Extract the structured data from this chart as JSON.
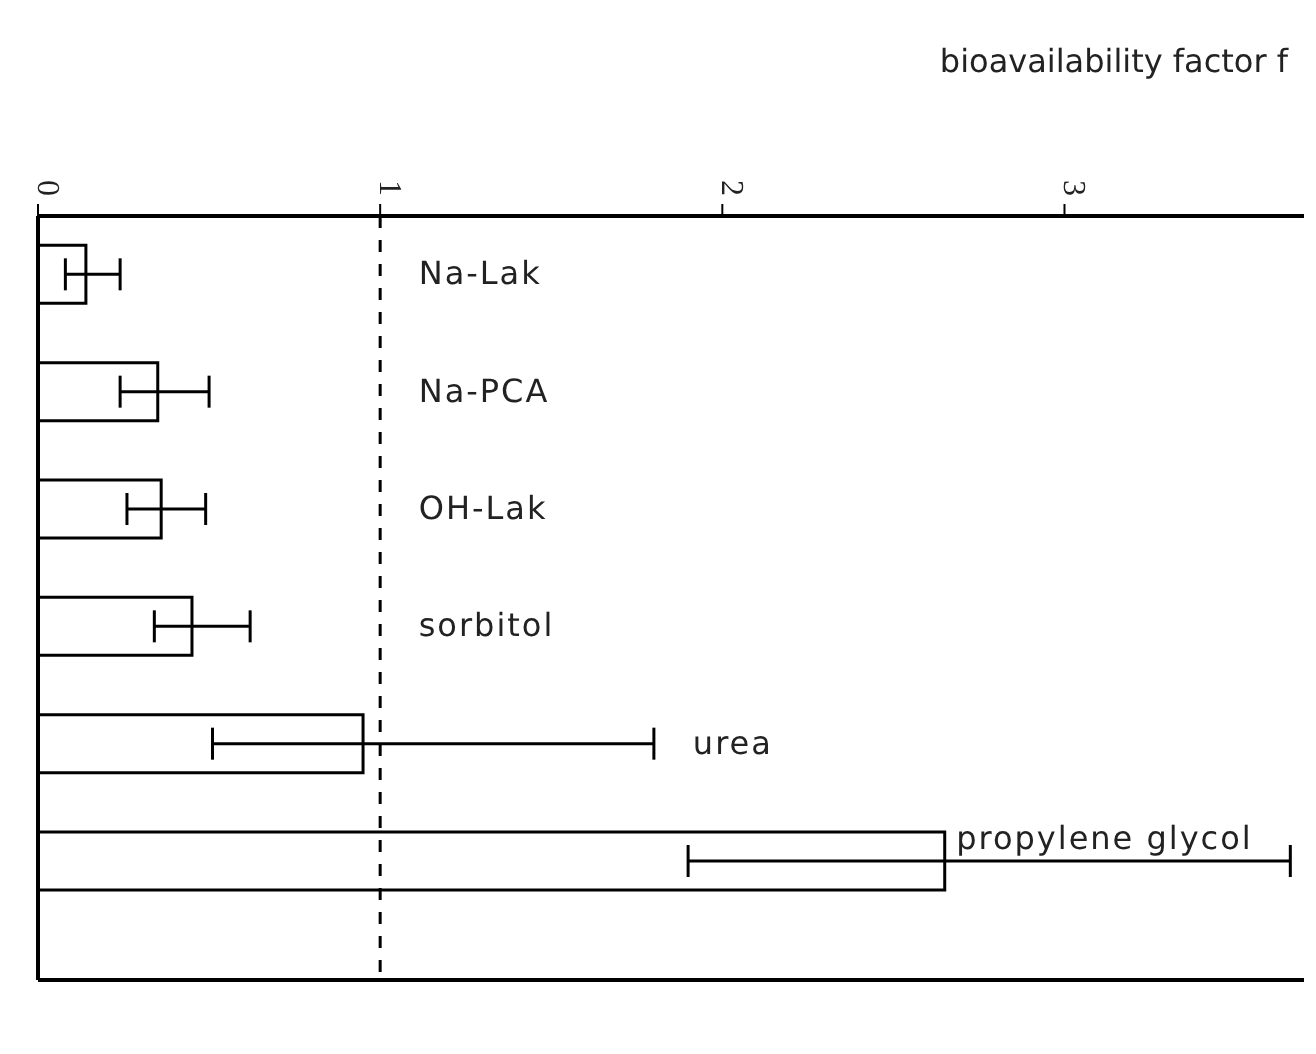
{
  "chart_data": {
    "type": "bar",
    "orientation": "horizontal",
    "xlabel": "bioavailability factor f",
    "categories": [
      "Na-Lak",
      "Na-PCA",
      "OH-Lak",
      "sorbitol",
      "urea",
      "propylene glycol"
    ],
    "values": [
      0.14,
      0.35,
      0.36,
      0.45,
      0.95,
      2.65
    ],
    "errors": [
      [
        0.08,
        0.24
      ],
      [
        0.24,
        0.5
      ],
      [
        0.26,
        0.49
      ],
      [
        0.34,
        0.62
      ],
      [
        0.51,
        1.8
      ],
      [
        1.9,
        3.66
      ]
    ],
    "color": "#000000",
    "xlim": [
      0,
      3.7
    ],
    "xticks": [
      0,
      1,
      2,
      3
    ],
    "tick_labels": "x",
    "ref_lines": [
      {
        "axis": "x",
        "value": 1,
        "line_style": "dashed"
      }
    ]
  }
}
